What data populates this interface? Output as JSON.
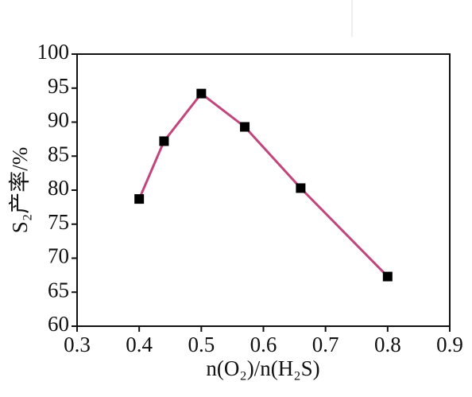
{
  "chart_data": {
    "type": "line",
    "x_label": "n(O₂)/n(H₂S)",
    "y_label": "S₂产率/%",
    "x": [
      0.4,
      0.44,
      0.5,
      0.57,
      0.66,
      0.8
    ],
    "values": [
      78.7,
      87.2,
      94.2,
      89.3,
      80.3,
      67.3
    ],
    "color": "#c2457d",
    "marker_color": "#000000",
    "xlim": [
      0.3,
      0.9
    ],
    "xticks": [
      0.3,
      0.4,
      0.5,
      0.6,
      0.7,
      0.8,
      0.9
    ],
    "ylim": [
      60,
      100
    ],
    "yticks": [
      60,
      65,
      70,
      75,
      80,
      85,
      90,
      95,
      100
    ]
  }
}
